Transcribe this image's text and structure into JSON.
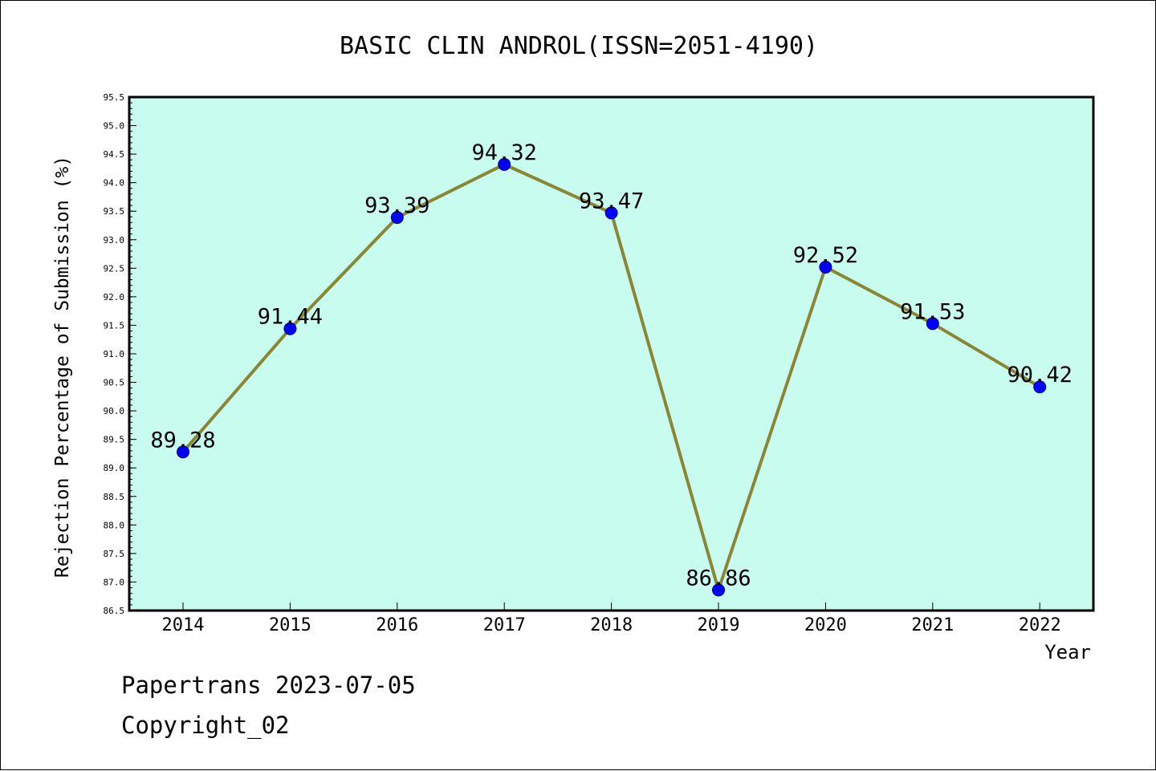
{
  "chart_data": {
    "type": "line",
    "title": "BASIC CLIN ANDROL(ISSN=2051-4190)",
    "xlabel": "Year",
    "ylabel": "Rejection Percentage of Submission (%)",
    "categories": [
      "2014",
      "2015",
      "2016",
      "2017",
      "2018",
      "2019",
      "2020",
      "2021",
      "2022"
    ],
    "values": [
      89.28,
      91.44,
      93.39,
      94.32,
      93.47,
      86.86,
      92.52,
      91.53,
      90.42
    ],
    "data_labels": [
      "89.28",
      "91.44",
      "93.39",
      "94.32",
      "93.47",
      "86.86",
      "92.52",
      "91.53",
      "90.42"
    ],
    "ylim": [
      86.5,
      95.5
    ],
    "y_ticks": [
      "86.5",
      "87.0",
      "87.5",
      "88.0",
      "88.5",
      "89.0",
      "89.5",
      "90.0",
      "90.5",
      "91.0",
      "91.5",
      "92.0",
      "92.5",
      "93.0",
      "93.5",
      "94.0",
      "94.5",
      "95.0",
      "95.5"
    ],
    "grid": false,
    "colors": {
      "plot_background": "#c8fcee",
      "line": "#8b8634",
      "marker": "#0000ff"
    }
  },
  "footer": {
    "line1": "Papertrans 2023-07-05",
    "line2": "Copyright_02"
  }
}
